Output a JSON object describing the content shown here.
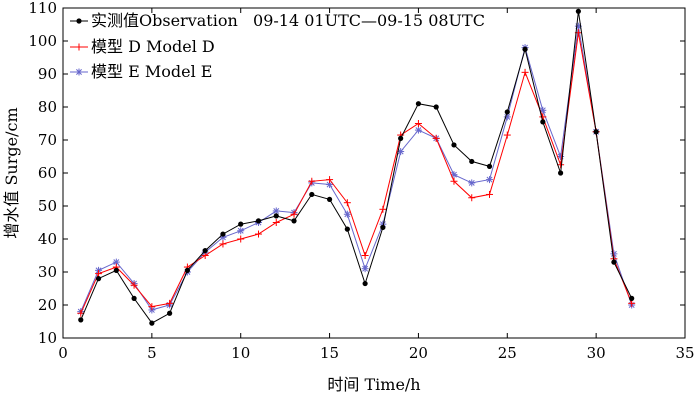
{
  "chart_data": {
    "type": "line",
    "xlabel": "时间 Time/h",
    "ylabel": "增水值 Surge/cm",
    "xlim": [
      0,
      35
    ],
    "ylim": [
      10,
      110
    ],
    "xticks": [
      0,
      5,
      10,
      15,
      20,
      25,
      30,
      35
    ],
    "yticks": [
      10,
      20,
      30,
      40,
      50,
      60,
      70,
      80,
      90,
      100,
      110
    ],
    "grid": false,
    "legend_position": "top-left",
    "x": [
      1,
      2,
      3,
      4,
      5,
      6,
      7,
      8,
      9,
      10,
      11,
      12,
      13,
      14,
      15,
      16,
      17,
      18,
      19,
      20,
      21,
      22,
      23,
      24,
      25,
      26,
      27,
      28,
      29,
      30,
      31,
      32
    ],
    "series": [
      {
        "name": "实测值Observation   09-14 01UTC—09-15 08UTC",
        "color": "#000000",
        "marker": "dot",
        "values": [
          15.5,
          28,
          30.5,
          22,
          14.5,
          17.5,
          30.5,
          36.5,
          41.5,
          44.5,
          45.5,
          47,
          45.5,
          53.5,
          52,
          43,
          26.5,
          43.5,
          70.5,
          81,
          80,
          68.5,
          63.5,
          62,
          78.5,
          97.5,
          75.5,
          60,
          109,
          72.5,
          33,
          22
        ]
      },
      {
        "name": "模型 D Model D",
        "color": "#ff0000",
        "marker": "plus",
        "values": [
          17.5,
          29.5,
          31.5,
          26,
          19.5,
          20.5,
          31.5,
          35,
          38.5,
          40,
          41.5,
          45,
          47.5,
          57.5,
          58,
          51,
          35,
          49,
          71.5,
          75,
          70.5,
          57.5,
          52.5,
          53.5,
          71.5,
          90.5,
          77,
          62.5,
          102.5,
          72.5,
          34,
          20.5
        ]
      },
      {
        "name": "模型 E Model E",
        "color": "#6666cc",
        "marker": "star",
        "values": [
          18,
          30.5,
          33,
          26.5,
          18.5,
          20,
          30,
          36,
          40.5,
          42.5,
          45,
          48.5,
          48,
          57,
          56.5,
          47.5,
          31,
          44.5,
          66.5,
          73,
          70.5,
          59.5,
          57,
          58,
          77,
          98,
          79,
          65,
          104.5,
          72.5,
          35.5,
          20
        ]
      }
    ]
  }
}
